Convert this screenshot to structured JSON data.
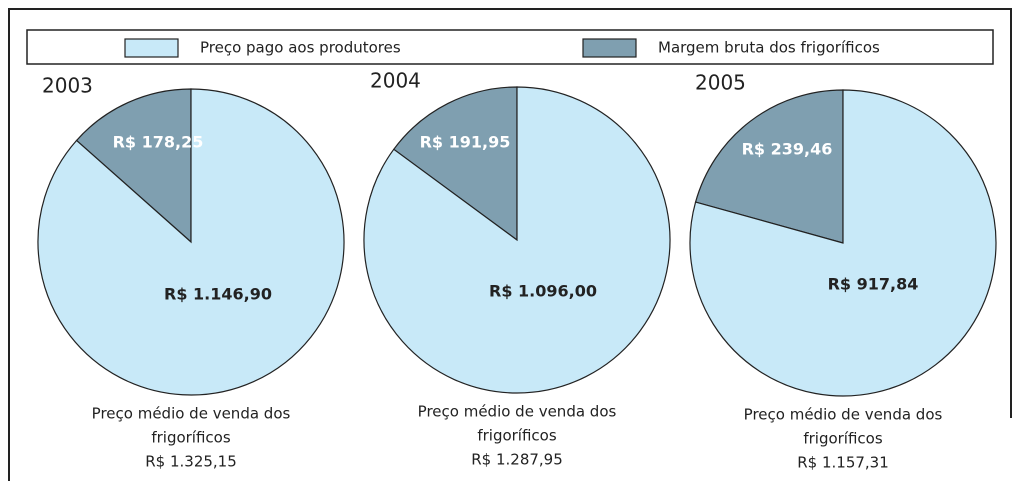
{
  "legend": [
    {
      "name": "Preço pago aos produtores",
      "color": "#c8e9f8"
    },
    {
      "name": "Margem bruta dos frigoríficos",
      "color": "#7f9fb0"
    }
  ],
  "chart_data": [
    {
      "type": "pie",
      "title": "2003",
      "values": [
        1146.9,
        178.25
      ],
      "value_labels": [
        "R$ 1.146,90",
        "R$ 178,25"
      ],
      "caption": [
        "Preço médio de venda dos",
        "frigoríficos"
      ],
      "total": {
        "value": 1325.15,
        "label": "R$ 1.325,15"
      }
    },
    {
      "type": "pie",
      "title": "2004",
      "values": [
        1096.0,
        191.95
      ],
      "value_labels": [
        "R$ 1.096,00",
        "R$ 191,95"
      ],
      "caption": [
        "Preço médio de venda dos",
        "frigoríficos"
      ],
      "total": {
        "value": 1287.95,
        "label": "R$ 1.287,95"
      }
    },
    {
      "type": "pie",
      "title": "2005",
      "values": [
        917.84,
        239.46
      ],
      "value_labels": [
        "R$ 917,84",
        "R$ 239,46"
      ],
      "caption": [
        "Preço médio de venda dos",
        "frigoríficos"
      ],
      "total": {
        "value": 1157.31,
        "label": "R$ 1.157,31"
      }
    }
  ]
}
